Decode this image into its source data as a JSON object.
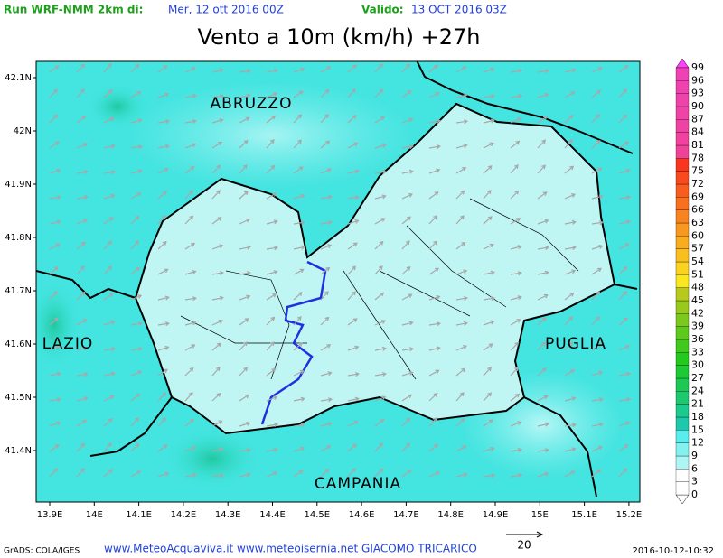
{
  "header": {
    "run_label": "Run WRF-NMM 2km di:",
    "run_date": "Mer, 12 ott 2016 00Z",
    "valid_label": "Valido:",
    "valid_date": "13 OCT 2016 03Z"
  },
  "title": "Vento a 10m (km/h) +27h",
  "x_ticks": [
    "13.9E",
    "14E",
    "14.1E",
    "14.2E",
    "14.3E",
    "14.4E",
    "14.5E",
    "14.6E",
    "14.7E",
    "14.8E",
    "14.9E",
    "15E",
    "15.1E",
    "15.2E"
  ],
  "y_ticks": [
    "42.1N",
    "42N",
    "41.9N",
    "41.8N",
    "41.7N",
    "41.6N",
    "41.5N",
    "41.4N"
  ],
  "regions": [
    "ABRUZZO",
    "LAZIO",
    "PUGLIA",
    "CAMPANIA"
  ],
  "colorbar": [
    0,
    3,
    6,
    9,
    12,
    15,
    18,
    21,
    24,
    27,
    30,
    33,
    36,
    39,
    42,
    45,
    48,
    51,
    54,
    57,
    60,
    63,
    66,
    69,
    72,
    75,
    78,
    81,
    84,
    87,
    90,
    93,
    96,
    99
  ],
  "vector_reference": 20,
  "footer": {
    "software": "GrADS: COLA/IGES",
    "credits": "www.MeteoAcquaviva.it www.meteoisernia.net GIACOMO TRICARICO",
    "timestamp": "2016-10-12-10:32"
  }
}
